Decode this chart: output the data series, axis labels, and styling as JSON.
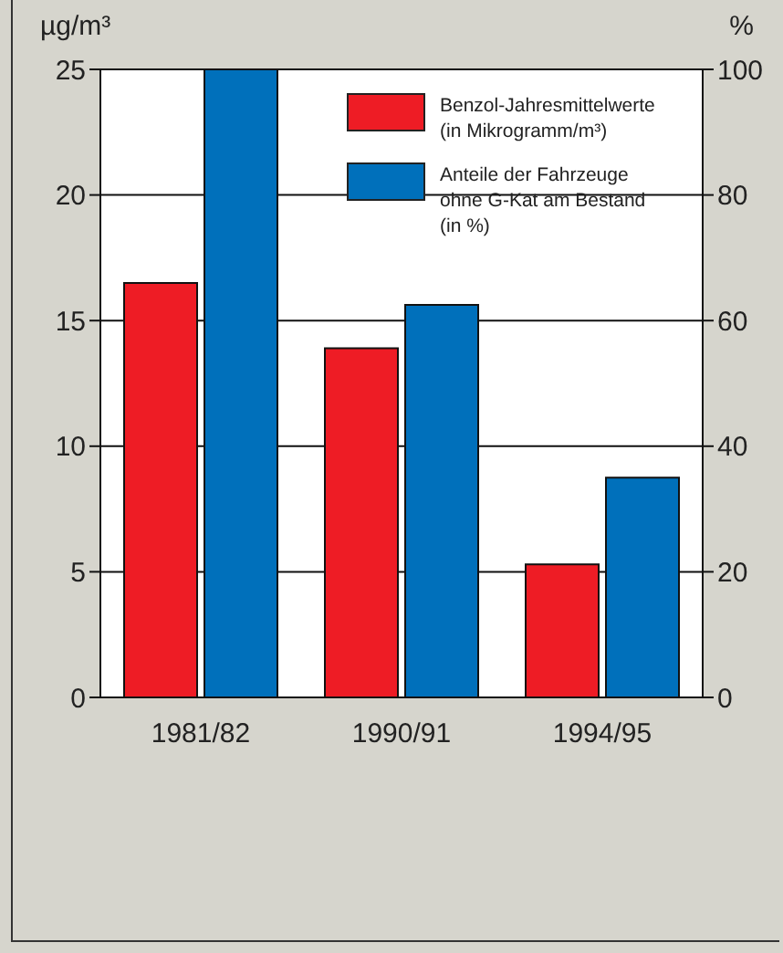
{
  "chart_data": {
    "type": "bar",
    "categories": [
      "1981/82",
      "1990/91",
      "1994/95"
    ],
    "ylabel": "µg/m³",
    "y2label": "%",
    "series": [
      {
        "name": "Benzol-Jahresmittelwerte (in Mikrogramm/m³)",
        "color": "#ee1c25",
        "values": [
          16.5,
          13.9,
          5.3
        ]
      },
      {
        "name": "Anteile der Fahrzeuge ohne G-Kat am Bestand (in %)",
        "color": "#0070bb",
        "values": [
          100,
          62.5,
          35
        ],
        "axis": "y2"
      }
    ],
    "ylim": [
      0,
      25
    ],
    "yticks": [
      0,
      5,
      10,
      15,
      20,
      25
    ],
    "y2lim": [
      0,
      100
    ],
    "y2ticks": [
      0,
      20,
      40,
      60,
      80,
      100
    ],
    "grid": "y",
    "legend": "top right"
  }
}
